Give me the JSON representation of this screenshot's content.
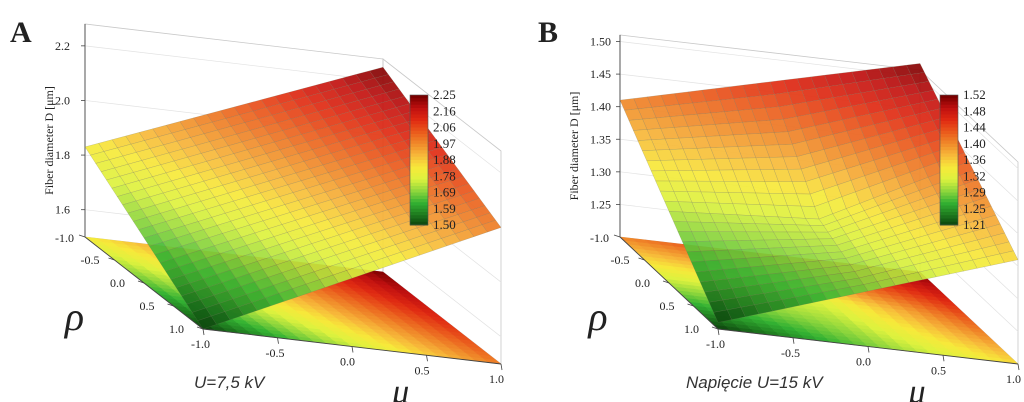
{
  "captions": {
    "a": "U=7,5 kV",
    "b": "Napięcie U=15 kV"
  },
  "colors": {
    "scale": [
      "#0b3d0b",
      "#1e7a1e",
      "#33b233",
      "#8ed63c",
      "#ddf23e",
      "#f7e93a",
      "#f7b93a",
      "#f08a2a",
      "#ea5a1c",
      "#e02a12",
      "#c01010",
      "#7a0000"
    ]
  },
  "chart_data": [
    {
      "type": "surface",
      "panel_label": "A",
      "zlabel": "Fiber diameter D [μm]",
      "xlabel": "ρ",
      "ylabel": "μ",
      "x_ticks": [
        "-1.0",
        "-0.5",
        "0.0",
        "0.5",
        "1.0"
      ],
      "y_ticks": [
        "-1.0",
        "-0.5",
        "0.0",
        "0.5",
        "1.0"
      ],
      "z_ticks": [
        "1.6",
        "1.8",
        "2.0",
        "2.2"
      ],
      "zlim": [
        1.5,
        2.28
      ],
      "legend_values": [
        "2.25",
        "2.16",
        "2.06",
        "1.97",
        "1.88",
        "1.78",
        "1.69",
        "1.59",
        "1.50"
      ],
      "legend_range": [
        1.5,
        2.25
      ],
      "corners": {
        "rho_m1_mu_m1": 1.83,
        "rho_m1_mu_p1": 2.25,
        "rho_p1_mu_m1": 1.5,
        "rho_p1_mu_p1": 2.0
      }
    },
    {
      "type": "surface",
      "panel_label": "B",
      "zlabel": "Fiber diameter D [μm]",
      "xlabel": "ρ",
      "ylabel": "μ",
      "x_ticks": [
        "-1.0",
        "-0.5",
        "0.0",
        "0.5",
        "1.0"
      ],
      "y_ticks": [
        "-1.0",
        "-0.5",
        "0.0",
        "0.5",
        "1.0"
      ],
      "z_ticks": [
        "1.25",
        "1.30",
        "1.35",
        "1.40",
        "1.45",
        "1.50"
      ],
      "zlim": [
        1.2,
        1.51
      ],
      "legend_values": [
        "1.52",
        "1.48",
        "1.44",
        "1.40",
        "1.36",
        "1.32",
        "1.29",
        "1.25",
        "1.21"
      ],
      "legend_range": [
        1.21,
        1.52
      ],
      "corners": {
        "rho_m1_mu_m1": 1.41,
        "rho_m1_mu_p1": 1.52,
        "rho_p1_mu_m1": 1.21,
        "rho_p1_mu_p1": 1.36
      }
    }
  ]
}
